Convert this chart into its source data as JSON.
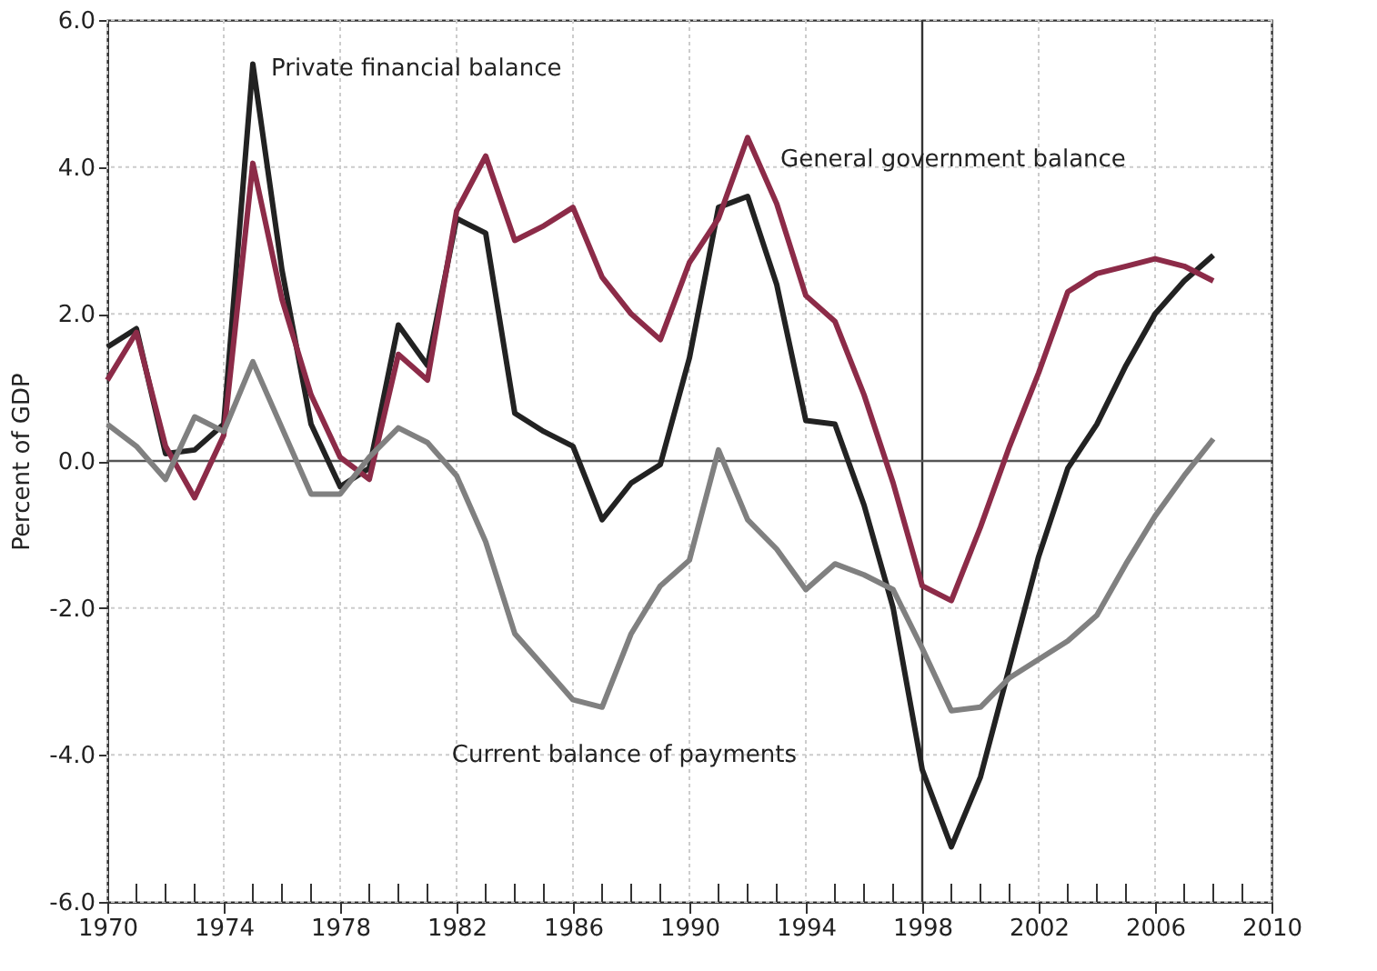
{
  "chart_data": {
    "type": "line",
    "ylabel": "Percent of GDP",
    "x": [
      1970,
      1971,
      1972,
      1973,
      1974,
      1975,
      1976,
      1977,
      1978,
      1979,
      1980,
      1981,
      1982,
      1983,
      1984,
      1985,
      1986,
      1987,
      1988,
      1989,
      1990,
      1991,
      1992,
      1993,
      1994,
      1995,
      1996,
      1997,
      1998,
      1999,
      2000,
      2001,
      2002,
      2003,
      2004,
      2005,
      2006,
      2007,
      2008
    ],
    "series": [
      {
        "name": "Private financial balance",
        "color": "#222222",
        "values": [
          1.55,
          1.8,
          0.1,
          0.15,
          0.5,
          5.4,
          2.6,
          0.5,
          -0.35,
          -0.1,
          1.85,
          1.3,
          3.3,
          3.1,
          0.65,
          0.4,
          0.2,
          -0.8,
          -0.3,
          -0.05,
          1.4,
          3.45,
          3.6,
          2.4,
          0.55,
          0.5,
          -0.6,
          -2.0,
          -4.2,
          -5.25,
          -4.3,
          -2.8,
          -1.3,
          -0.1,
          0.5,
          1.3,
          2.0,
          2.45,
          2.8
        ]
      },
      {
        "name": "General government balance",
        "color": "#8c2b48",
        "values": [
          1.1,
          1.75,
          0.2,
          -0.5,
          0.35,
          4.05,
          2.2,
          0.9,
          0.05,
          -0.25,
          1.45,
          1.1,
          3.4,
          4.15,
          3.0,
          3.2,
          3.45,
          2.5,
          2.0,
          1.65,
          2.7,
          3.3,
          4.4,
          3.5,
          2.25,
          1.9,
          0.9,
          -0.3,
          -1.7,
          -1.9,
          -0.9,
          0.2,
          1.2,
          2.3,
          2.55,
          2.65,
          2.75,
          2.65,
          2.45
        ]
      },
      {
        "name": "Current balance of payments",
        "color": "#808080",
        "values": [
          0.5,
          0.2,
          -0.25,
          0.6,
          0.4,
          1.35,
          0.45,
          -0.45,
          -0.45,
          0.05,
          0.45,
          0.25,
          -0.2,
          -1.1,
          -2.35,
          -2.8,
          -3.25,
          -3.35,
          -2.35,
          -1.7,
          -1.35,
          0.15,
          -0.8,
          -1.2,
          -1.75,
          -1.4,
          -1.55,
          -1.75,
          -2.55,
          -3.4,
          -3.35,
          -2.95,
          -2.7,
          -2.45,
          -2.1,
          -1.4,
          -0.75,
          -0.2,
          0.3
        ]
      }
    ],
    "xlim": [
      1970,
      2010
    ],
    "xticks": [
      1970,
      {
        "value": 1971,
        "label": null
      },
      {
        "value": 1972,
        "label": null
      },
      {
        "value": 1973,
        "label": null
      },
      1974,
      {
        "value": 1975,
        "label": null
      },
      {
        "value": 1976,
        "label": null
      },
      {
        "value": 1977,
        "label": null
      },
      1978,
      {
        "value": 1979,
        "label": null
      },
      {
        "value": 1980,
        "label": null
      },
      {
        "value": 1981,
        "label": null
      },
      1982,
      {
        "value": 1983,
        "label": null
      },
      {
        "value": 1984,
        "label": null
      },
      {
        "value": 1985,
        "label": null
      },
      1986,
      {
        "value": 1987,
        "label": null
      },
      {
        "value": 1988,
        "label": null
      },
      {
        "value": 1989,
        "label": null
      },
      1990,
      {
        "value": 1991,
        "label": null
      },
      {
        "value": 1992,
        "label": null
      },
      {
        "value": 1993,
        "label": null
      },
      1994,
      {
        "value": 1995,
        "label": null
      },
      {
        "value": 1996,
        "label": null
      },
      {
        "value": 1997,
        "label": null
      },
      1998,
      {
        "value": 1999,
        "label": null
      },
      {
        "value": 2000,
        "label": null
      },
      {
        "value": 2001,
        "label": null
      },
      2002,
      {
        "value": 2003,
        "label": null
      },
      {
        "value": 2004,
        "label": null
      },
      {
        "value": 2005,
        "label": null
      },
      2006,
      {
        "value": 2007,
        "label": null
      },
      {
        "value": 2008,
        "label": null
      },
      {
        "value": 2009,
        "label": null
      },
      2010
    ],
    "ylim": [
      -6,
      6
    ],
    "yticks": [
      {
        "value": -6,
        "label": "-6.0"
      },
      {
        "value": -4,
        "label": "-4.0"
      },
      {
        "value": -2,
        "label": "-2.0"
      },
      {
        "value": 0,
        "label": "0.0"
      },
      {
        "value": 2,
        "label": "2.0"
      },
      {
        "value": 4,
        "label": "4.0"
      },
      {
        "value": 6,
        "label": "6.0"
      }
    ],
    "ref_lines": [
      {
        "axis": "x",
        "value": 1998,
        "color": "#333333"
      },
      {
        "axis": "y",
        "value": 0,
        "color": "#555555"
      }
    ],
    "grid": true,
    "marker": "none",
    "line_style": "solid"
  }
}
